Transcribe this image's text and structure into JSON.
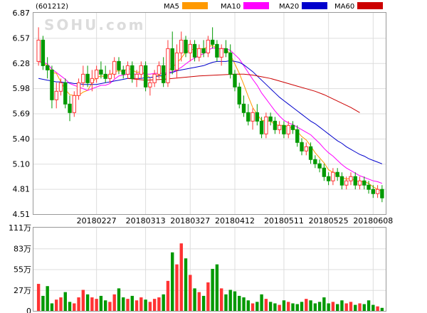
{
  "chart_data": {
    "type": "candlestick",
    "code_label": "(601212)",
    "watermark": "SOHU.com",
    "legend": [
      {
        "name": "MA5",
        "color": "#ff9900"
      },
      {
        "name": "MA10",
        "color": "#ff00ff"
      },
      {
        "name": "MA20",
        "color": "#0000cc"
      },
      {
        "name": "MA60",
        "color": "#cc0000"
      }
    ],
    "colors": {
      "up": "#ff3333",
      "down": "#009900"
    },
    "price_axis": {
      "ticks": [
        "6.87",
        "6.57",
        "6.28",
        "5.98",
        "5.69",
        "5.40",
        "5.10",
        "4.81",
        "4.51"
      ],
      "range": [
        4.51,
        6.87
      ]
    },
    "volume_axis": {
      "ticks": [
        "111万",
        "83万",
        "55万",
        "27万",
        "0"
      ],
      "range": [
        0,
        111
      ]
    },
    "date_labels": [
      {
        "label": "20180227",
        "index": 13
      },
      {
        "label": "20180313",
        "index": 24
      },
      {
        "label": "20180327",
        "index": 34
      },
      {
        "label": "20180412",
        "index": 44
      },
      {
        "label": "20180511",
        "index": 55
      },
      {
        "label": "20180525",
        "index": 65
      },
      {
        "label": "20180608",
        "index": 75
      }
    ],
    "candles": [
      [
        6.3,
        6.7,
        6.25,
        6.55
      ],
      [
        6.55,
        6.6,
        6.2,
        6.25
      ],
      [
        6.25,
        6.35,
        6.1,
        6.2
      ],
      [
        6.2,
        6.25,
        5.75,
        5.85
      ],
      [
        5.85,
        6.05,
        5.75,
        5.95
      ],
      [
        5.95,
        6.1,
        5.9,
        6.05
      ],
      [
        6.05,
        6.1,
        5.75,
        5.8
      ],
      [
        5.8,
        5.9,
        5.6,
        5.7
      ],
      [
        5.7,
        5.95,
        5.65,
        5.9
      ],
      [
        5.9,
        6.1,
        5.85,
        6.05
      ],
      [
        6.05,
        6.25,
        6.0,
        6.15
      ],
      [
        6.15,
        6.25,
        6.0,
        6.05
      ],
      [
        6.05,
        6.2,
        5.95,
        6.1
      ],
      [
        6.1,
        6.25,
        6.05,
        6.2
      ],
      [
        6.2,
        6.3,
        6.1,
        6.15
      ],
      [
        6.15,
        6.25,
        6.05,
        6.1
      ],
      [
        6.1,
        6.2,
        6.05,
        6.15
      ],
      [
        6.15,
        6.35,
        6.1,
        6.3
      ],
      [
        6.3,
        6.35,
        6.15,
        6.2
      ],
      [
        6.2,
        6.25,
        6.1,
        6.15
      ],
      [
        6.15,
        6.3,
        6.1,
        6.25
      ],
      [
        6.25,
        6.3,
        6.05,
        6.1
      ],
      [
        6.1,
        6.2,
        6.0,
        6.15
      ],
      [
        6.15,
        6.3,
        6.1,
        6.25
      ],
      [
        6.25,
        6.3,
        5.95,
        6.0
      ],
      [
        6.0,
        6.1,
        5.9,
        6.05
      ],
      [
        6.05,
        6.2,
        6.0,
        6.15
      ],
      [
        6.15,
        6.3,
        6.1,
        6.25
      ],
      [
        6.25,
        6.35,
        6.0,
        6.05
      ],
      [
        6.05,
        6.55,
        6.0,
        6.45
      ],
      [
        6.45,
        6.65,
        6.15,
        6.2
      ],
      [
        6.2,
        6.5,
        6.1,
        6.4
      ],
      [
        6.4,
        6.65,
        6.3,
        6.55
      ],
      [
        6.55,
        6.6,
        6.35,
        6.4
      ],
      [
        6.4,
        6.55,
        6.3,
        6.5
      ],
      [
        6.5,
        6.55,
        6.3,
        6.35
      ],
      [
        6.35,
        6.5,
        6.3,
        6.45
      ],
      [
        6.45,
        6.55,
        6.35,
        6.4
      ],
      [
        6.4,
        6.6,
        6.35,
        6.55
      ],
      [
        6.55,
        6.7,
        6.45,
        6.5
      ],
      [
        6.5,
        6.55,
        6.3,
        6.35
      ],
      [
        6.35,
        6.5,
        6.25,
        6.45
      ],
      [
        6.45,
        6.55,
        6.35,
        6.4
      ],
      [
        6.4,
        6.5,
        6.1,
        6.15
      ],
      [
        6.15,
        6.2,
        5.95,
        6.0
      ],
      [
        6.0,
        6.05,
        5.75,
        5.8
      ],
      [
        5.8,
        5.9,
        5.65,
        5.7
      ],
      [
        5.7,
        5.8,
        5.55,
        5.6
      ],
      [
        5.6,
        5.75,
        5.5,
        5.7
      ],
      [
        5.7,
        5.8,
        5.55,
        5.6
      ],
      [
        5.6,
        5.65,
        5.4,
        5.45
      ],
      [
        5.45,
        5.7,
        5.4,
        5.65
      ],
      [
        5.65,
        5.7,
        5.55,
        5.6
      ],
      [
        5.6,
        5.65,
        5.45,
        5.5
      ],
      [
        5.5,
        5.6,
        5.45,
        5.55
      ],
      [
        5.55,
        5.6,
        5.4,
        5.45
      ],
      [
        5.45,
        5.6,
        5.4,
        5.55
      ],
      [
        5.55,
        5.6,
        5.45,
        5.5
      ],
      [
        5.5,
        5.55,
        5.3,
        5.35
      ],
      [
        5.35,
        5.4,
        5.2,
        5.25
      ],
      [
        5.25,
        5.35,
        5.2,
        5.3
      ],
      [
        5.3,
        5.35,
        5.1,
        5.15
      ],
      [
        5.15,
        5.2,
        5.05,
        5.1
      ],
      [
        5.1,
        5.15,
        5.0,
        5.05
      ],
      [
        5.05,
        5.1,
        4.9,
        4.95
      ],
      [
        4.95,
        5.0,
        4.85,
        4.9
      ],
      [
        4.9,
        5.05,
        4.85,
        5.0
      ],
      [
        5.0,
        5.05,
        4.9,
        4.95
      ],
      [
        4.95,
        5.0,
        4.8,
        4.85
      ],
      [
        4.85,
        4.95,
        4.8,
        4.9
      ],
      [
        4.9,
        5.0,
        4.85,
        4.95
      ],
      [
        4.95,
        5.0,
        4.8,
        4.85
      ],
      [
        4.85,
        4.95,
        4.8,
        4.9
      ],
      [
        4.9,
        4.95,
        4.8,
        4.85
      ],
      [
        4.85,
        4.9,
        4.75,
        4.8
      ],
      [
        4.8,
        4.85,
        4.7,
        4.75
      ],
      [
        4.75,
        4.85,
        4.7,
        4.8
      ],
      [
        4.8,
        4.85,
        4.65,
        4.7
      ]
    ],
    "volume": [
      36,
      20,
      33,
      10,
      15,
      18,
      25,
      12,
      10,
      18,
      28,
      22,
      18,
      16,
      20,
      14,
      12,
      22,
      30,
      18,
      16,
      20,
      14,
      18,
      15,
      12,
      16,
      18,
      22,
      40,
      78,
      62,
      90,
      70,
      48,
      30,
      25,
      20,
      38,
      56,
      62,
      30,
      22,
      28,
      26,
      20,
      18,
      14,
      10,
      12,
      22,
      16,
      12,
      10,
      8,
      14,
      12,
      10,
      9,
      12,
      16,
      14,
      10,
      12,
      18,
      10,
      12,
      9,
      14,
      10,
      12,
      8,
      10,
      9,
      14,
      8,
      6,
      4
    ],
    "ma_series": [
      {
        "name": "MA5",
        "values": [
          6.3,
          6.28,
          6.25,
          6.17,
          6.16,
          6.06,
          5.97,
          5.91,
          5.9,
          5.9,
          5.94,
          5.96,
          6.05,
          6.11,
          6.13,
          6.12,
          6.14,
          6.18,
          6.19,
          6.18,
          6.22,
          6.2,
          6.17,
          6.18,
          6.15,
          6.11,
          6.12,
          6.14,
          6.1,
          6.19,
          6.23,
          6.28,
          6.34,
          6.41,
          6.43,
          6.45,
          6.45,
          6.45,
          6.47,
          6.49,
          6.45,
          6.45,
          6.45,
          6.38,
          6.27,
          6.16,
          6.03,
          5.89,
          5.76,
          5.68,
          5.61,
          5.6,
          5.6,
          5.56,
          5.55,
          5.55,
          5.53,
          5.52,
          5.48,
          5.42,
          5.38,
          5.31,
          5.23,
          5.17,
          5.11,
          5.03,
          5.0,
          4.97,
          4.94,
          4.92,
          4.93,
          4.9,
          4.89,
          4.89,
          4.87,
          4.83,
          4.8,
          4.78
        ]
      },
      {
        "name": "MA10",
        "values": [
          6.3,
          6.29,
          6.27,
          6.21,
          6.17,
          6.13,
          6.09,
          6.04,
          6.02,
          6.0,
          5.98,
          5.96,
          5.98,
          6.0,
          6.02,
          6.02,
          6.04,
          6.09,
          6.13,
          6.14,
          6.15,
          6.15,
          6.15,
          6.16,
          6.15,
          6.15,
          6.16,
          6.16,
          6.16,
          6.17,
          6.18,
          6.2,
          6.23,
          6.27,
          6.31,
          6.34,
          6.37,
          6.39,
          6.43,
          6.46,
          6.45,
          6.45,
          6.45,
          6.43,
          6.38,
          6.33,
          6.25,
          6.17,
          6.09,
          6.02,
          5.93,
          5.86,
          5.79,
          5.72,
          5.66,
          5.61,
          5.58,
          5.56,
          5.53,
          5.5,
          5.47,
          5.44,
          5.39,
          5.34,
          5.28,
          5.23,
          5.19,
          5.14,
          5.09,
          5.05,
          5.02,
          4.99,
          4.96,
          4.94,
          4.92,
          4.9,
          4.89,
          4.87
        ]
      },
      {
        "name": "MA20",
        "values": [
          6.1,
          6.09,
          6.08,
          6.07,
          6.06,
          6.06,
          6.05,
          6.05,
          6.04,
          6.04,
          6.03,
          6.03,
          6.03,
          6.03,
          6.04,
          6.05,
          6.06,
          6.07,
          6.08,
          6.09,
          6.1,
          6.1,
          6.1,
          6.1,
          6.11,
          6.11,
          6.12,
          6.13,
          6.14,
          6.16,
          6.17,
          6.19,
          6.2,
          6.21,
          6.22,
          6.23,
          6.24,
          6.25,
          6.27,
          6.29,
          6.3,
          6.3,
          6.3,
          6.31,
          6.3,
          6.29,
          6.26,
          6.22,
          6.18,
          6.13,
          6.08,
          6.03,
          5.98,
          5.93,
          5.88,
          5.84,
          5.8,
          5.76,
          5.72,
          5.68,
          5.64,
          5.6,
          5.57,
          5.53,
          5.49,
          5.45,
          5.41,
          5.37,
          5.34,
          5.3,
          5.27,
          5.24,
          5.21,
          5.19,
          5.16,
          5.14,
          5.12,
          5.1
        ]
      },
      {
        "name": "MA60",
        "values": [
          null,
          null,
          null,
          null,
          null,
          null,
          null,
          null,
          null,
          null,
          null,
          null,
          null,
          null,
          null,
          null,
          null,
          null,
          null,
          null,
          null,
          null,
          null,
          null,
          null,
          null,
          null,
          null,
          null,
          null,
          null,
          null,
          null,
          null,
          null,
          null,
          null,
          null,
          null,
          null,
          null,
          null,
          null,
          null,
          null,
          null,
          null,
          null,
          null,
          null,
          null,
          null,
          null,
          null,
          null,
          null,
          null,
          null,
          null,
          null,
          null,
          null,
          null,
          null,
          null,
          null,
          null,
          null,
          null,
          null,
          null,
          null,
          null,
          null,
          null,
          null,
          null,
          null
        ]
      }
    ],
    "ma60_line": [
      [
        6.1,
        20
      ],
      [
        6.08,
        24
      ],
      [
        6.09,
        28
      ],
      [
        6.11,
        32
      ],
      [
        6.13,
        36
      ],
      [
        6.14,
        40
      ],
      [
        6.15,
        44
      ],
      [
        6.15,
        46
      ],
      [
        6.14,
        48
      ],
      [
        6.12,
        50
      ],
      [
        6.1,
        52
      ],
      [
        6.07,
        54
      ],
      [
        6.04,
        56
      ],
      [
        6.01,
        58
      ],
      [
        5.98,
        60
      ],
      [
        5.95,
        62
      ],
      [
        5.91,
        64
      ],
      [
        5.86,
        66
      ],
      [
        5.81,
        68
      ],
      [
        5.76,
        70
      ],
      [
        5.7,
        72
      ]
    ]
  }
}
